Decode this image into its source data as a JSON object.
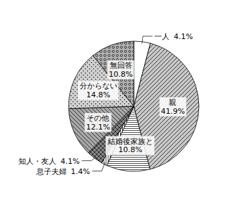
{
  "chart_data": {
    "type": "pie",
    "categories": [
      "一人",
      "親",
      "結婚後家族と",
      "息子夫婦",
      "知人・友人",
      "その他",
      "分からない",
      "無回答"
    ],
    "values": [
      4.1,
      41.9,
      10.8,
      1.4,
      4.1,
      12.1,
      14.8,
      10.8
    ],
    "value_labels": [
      "4.1%",
      "41.9%",
      "10.8%",
      "1.4%",
      "4.1%",
      "12.1%",
      "14.8%",
      "10.8%"
    ],
    "data_labels": true,
    "colors": [
      "#ffffff",
      "#c8c8c8",
      "#ffffff",
      "#ffffff",
      "#888888",
      "#a8a8a8",
      "#d0d0d0",
      "#b0b0b0"
    ]
  }
}
